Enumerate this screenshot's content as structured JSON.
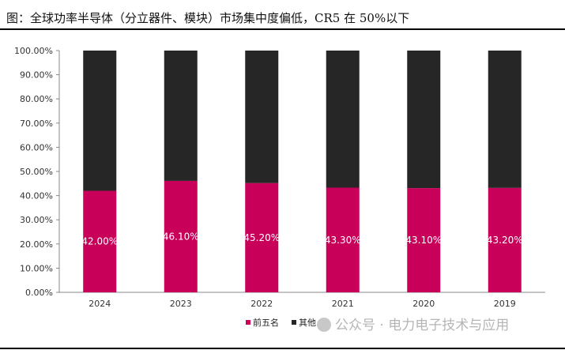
{
  "title": "图：全球功率半导体（分立器件、模块）市场集中度偏低，CR5 在 50%以下",
  "watermark": "公众号 · 电力电子技术与应用",
  "chart_data": {
    "type": "bar",
    "stacked": true,
    "percent": true,
    "categories": [
      "2024",
      "2023",
      "2022",
      "2021",
      "2020",
      "2019"
    ],
    "series": [
      {
        "name": "前五名",
        "values": [
          42.0,
          46.1,
          45.2,
          43.3,
          43.1,
          43.2
        ],
        "color": "#C8005A",
        "labels": [
          "42.00%",
          "46.10%",
          "45.20%",
          "43.30%",
          "43.10%",
          "43.20%"
        ]
      },
      {
        "name": "其他",
        "values": [
          58.0,
          53.9,
          54.8,
          56.7,
          56.9,
          56.8
        ],
        "color": "#262626"
      }
    ],
    "ylim": [
      0,
      100
    ],
    "yticks": [
      "0.00%",
      "10.00%",
      "20.00%",
      "30.00%",
      "40.00%",
      "50.00%",
      "60.00%",
      "70.00%",
      "80.00%",
      "90.00%",
      "100.00%"
    ],
    "legend": "bottom",
    "grid": false
  }
}
